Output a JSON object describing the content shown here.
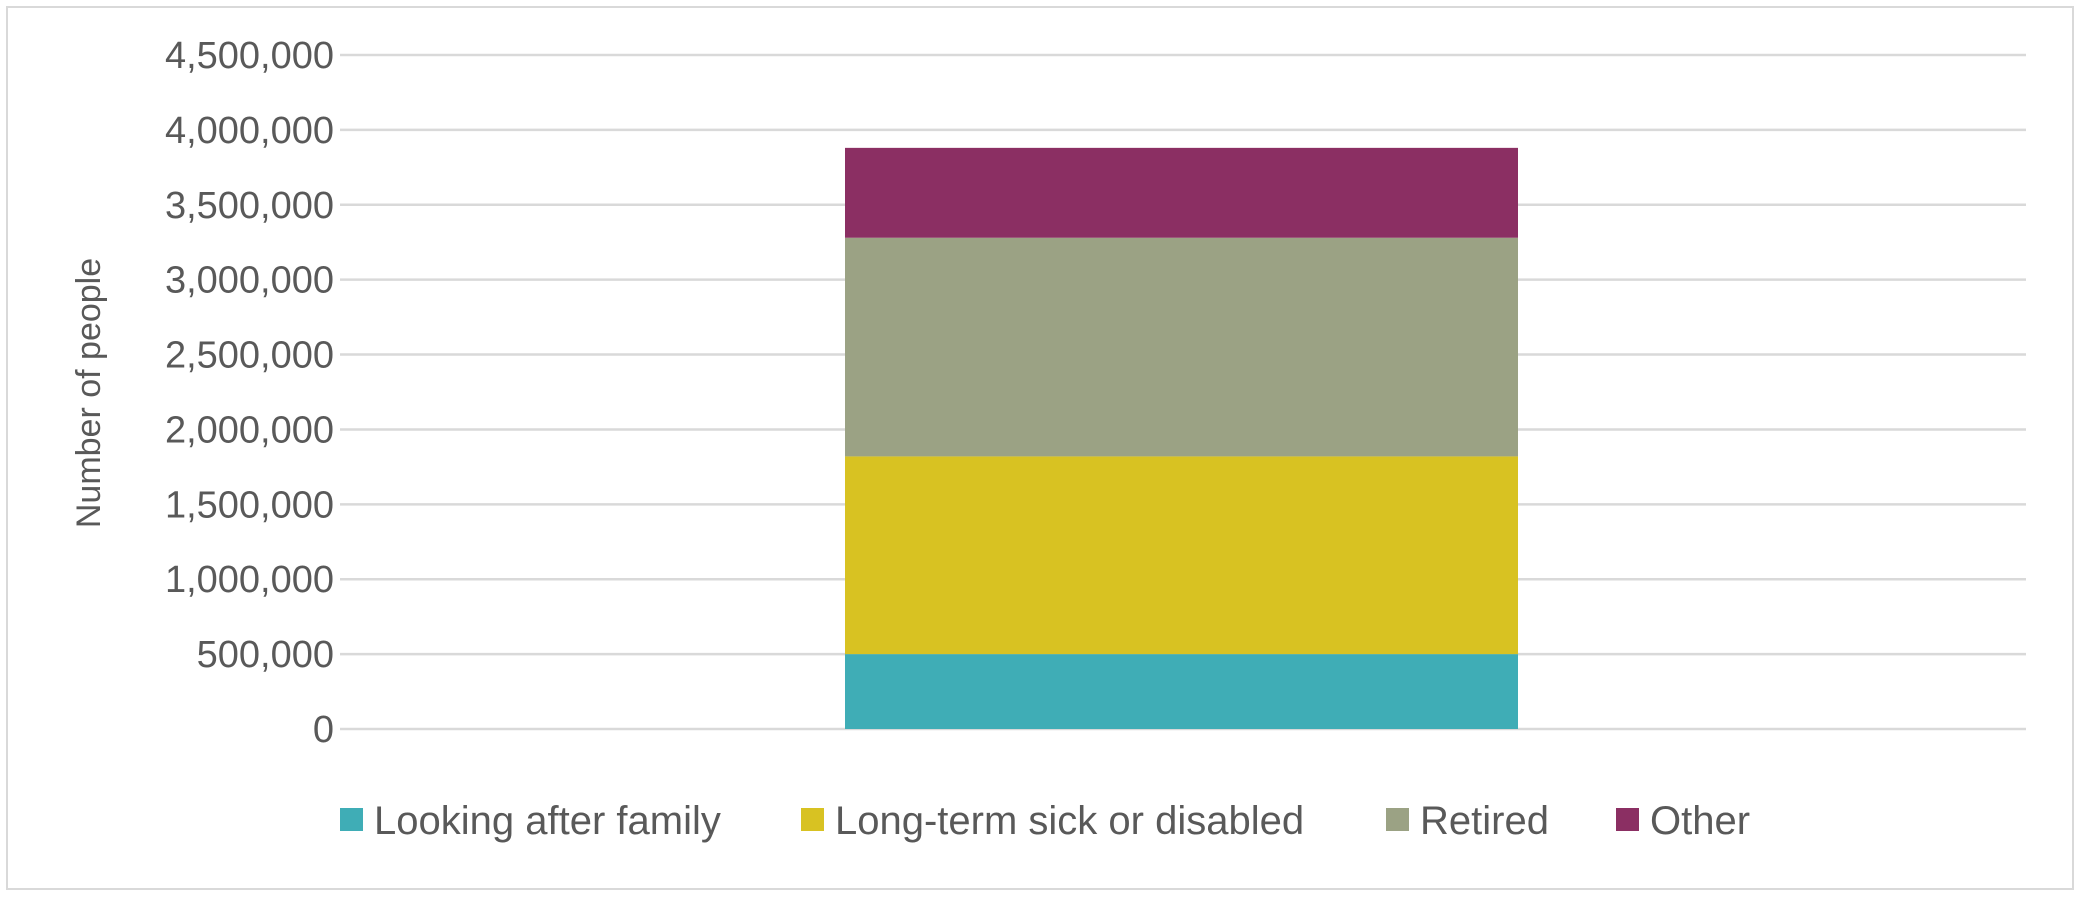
{
  "chart_data": {
    "type": "bar",
    "stacked": true,
    "categories": [
      ""
    ],
    "series": [
      {
        "name": "Looking after family",
        "values": [
          500000
        ],
        "color": "#3FADB6"
      },
      {
        "name": "Long-term sick or disabled",
        "values": [
          1320000
        ],
        "color": "#D8C222"
      },
      {
        "name": "Retired",
        "values": [
          1460000
        ],
        "color": "#9BA284"
      },
      {
        "name": "Other",
        "values": [
          600000
        ],
        "color": "#8B2F63"
      }
    ],
    "title": "",
    "xlabel": "",
    "ylabel": "Number of people",
    "ylim": [
      0,
      4500000
    ],
    "yticks": [
      0,
      500000,
      1000000,
      1500000,
      2000000,
      2500000,
      3000000,
      3500000,
      4000000,
      4500000
    ],
    "ytick_labels": [
      "0",
      "500,000",
      "1,000,000",
      "1,500,000",
      "2,000,000",
      "2,500,000",
      "3,000,000",
      "3,500,000",
      "4,000,000",
      "4,500,000"
    ],
    "grid": true,
    "legend": "bottom",
    "gridline_color": "#d9d9d9",
    "text_color": "#595959"
  }
}
